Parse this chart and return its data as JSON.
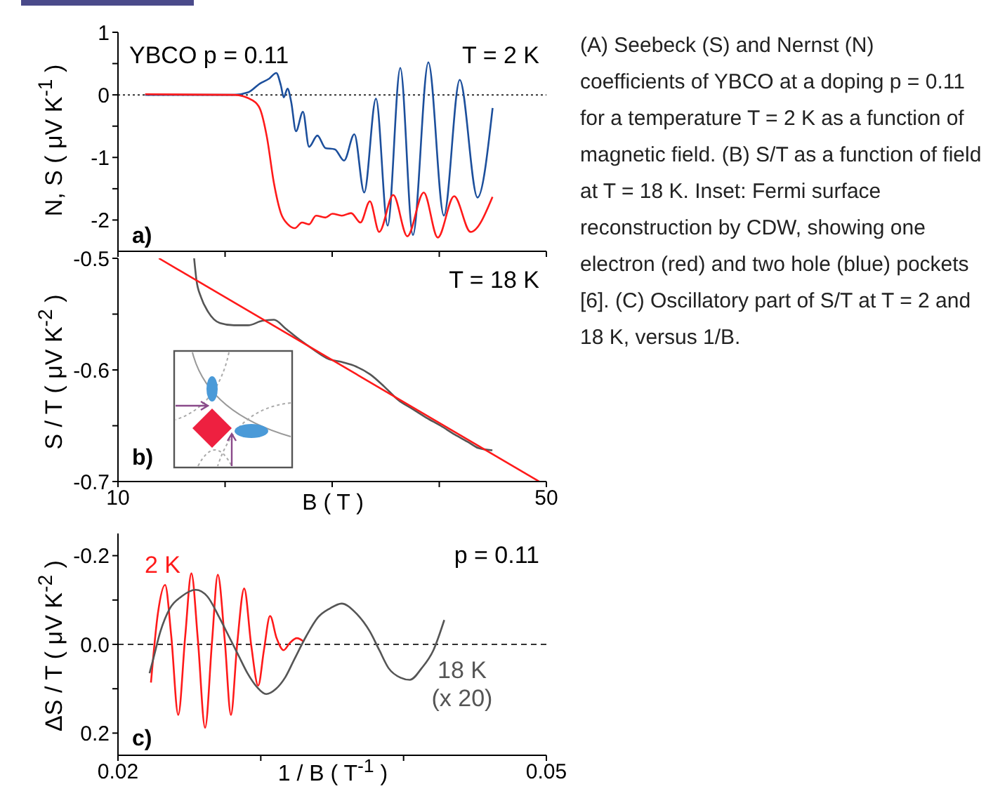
{
  "chart_data": [
    {
      "type": "line",
      "ylabel": "N, S ( μV K$^{-1}$ )",
      "xlim": [
        10,
        50
      ],
      "xticks": [
        10,
        20,
        30,
        40,
        50
      ],
      "ylim": [
        -2.5,
        1
      ],
      "yticks": [
        1,
        {
          "value": 0.5,
          "label": null
        },
        0,
        {
          "value": -0.5,
          "label": null
        },
        -1,
        {
          "value": -1.5,
          "label": null
        },
        -2
      ],
      "tick_labels": "y",
      "annotations": [
        "YBCO p = 0.11",
        "T = 2 K",
        "a)"
      ],
      "ref_lines": [
        {
          "axis": "y",
          "value": 0,
          "line_style": "dotted",
          "color": "#333333"
        }
      ],
      "series": [
        {
          "color": "#1c4f9c",
          "x": [
            12.53,
            20.85,
            22.16,
            23.25,
            24.12,
            24.78,
            25.21,
            25.48,
            25.83,
            26.17,
            26.62,
            27.27,
            27.84,
            28.62,
            29.37,
            30.24,
            31.11,
            32.07,
            32.99,
            34.09,
            35.18,
            36.36,
            37.54,
            38.98,
            40.43,
            41.91,
            43.57,
            44.98
          ],
          "values": [
            0,
            0,
            0.04,
            0.18,
            0.26,
            0.35,
            0.15,
            -0.04,
            0.1,
            -0.11,
            -0.58,
            -0.27,
            -0.83,
            -0.65,
            -0.85,
            -0.87,
            -1.05,
            -0.63,
            -1.56,
            -0.06,
            -2.09,
            0.43,
            -2.24,
            0.52,
            -1.93,
            0.24,
            -1.64,
            -0.21
          ]
        },
        {
          "color": "#ff1a1a",
          "x": [
            12.54,
            20.84,
            22.59,
            23.25,
            23.9,
            24.56,
            25.21,
            25.87,
            26.52,
            27.18,
            27.84,
            28.49,
            29.37,
            30.02,
            30.9,
            31.77,
            32.64,
            33.52,
            34.39,
            35.7,
            37.02,
            38.55,
            39.86,
            41.39,
            42.92,
            44.97
          ],
          "values": [
            0.01,
            0,
            -0.09,
            -0.22,
            -0.67,
            -1.41,
            -1.89,
            -2.07,
            -2.13,
            -2.04,
            -2.07,
            -1.93,
            -1.96,
            -1.9,
            -1.93,
            -1.89,
            -2.04,
            -1.7,
            -2.19,
            -1.6,
            -2.26,
            -1.56,
            -2.28,
            -1.62,
            -2.19,
            -1.63
          ]
        }
      ]
    },
    {
      "type": "line",
      "xlabel": "B ( T )",
      "ylabel": "S / T ( μV K$^{-2}$ )",
      "xlim": [
        10,
        50
      ],
      "xticks": [
        10,
        {
          "value": 20,
          "label": null
        },
        {
          "value": 30,
          "label": null
        },
        {
          "value": 40,
          "label": null
        },
        50
      ],
      "ylim": [
        -0.7,
        -0.5
      ],
      "yticks": [
        -0.5,
        {
          "value": -0.55,
          "label": null
        },
        -0.6,
        {
          "value": -0.65,
          "label": null
        },
        -0.7
      ],
      "annotations": [
        "T = 18 K",
        "b)"
      ],
      "series": [
        {
          "color": "#555555",
          "x": [
            17.11,
            17.32,
            17.76,
            18.42,
            19.52,
            20.83,
            22.15,
            23.46,
            24.56,
            25.66,
            26.97,
            28.29,
            29.61,
            30.92,
            32.24,
            33.55,
            34.87,
            36.18,
            37.5,
            38.82,
            40.13,
            41.45,
            42.76,
            43.64,
            44.96
          ],
          "values": [
            -0.5,
            -0.519,
            -0.535,
            -0.548,
            -0.558,
            -0.56,
            -0.56,
            -0.556,
            -0.555,
            -0.563,
            -0.573,
            -0.582,
            -0.59,
            -0.593,
            -0.597,
            -0.604,
            -0.615,
            -0.627,
            -0.635,
            -0.643,
            -0.65,
            -0.658,
            -0.665,
            -0.67,
            -0.672
          ]
        },
        {
          "type": "line",
          "color": "#ff1a1a",
          "x": [
            13.82,
            49.34
          ],
          "values": [
            -0.5,
            -0.7
          ]
        }
      ]
    },
    {
      "type": "line",
      "xlabel": "1 / B ( T$^{-1}$ )",
      "ylabel": "ΔS / T ( μV K$^{-2}$ )",
      "xlim": [
        0.02,
        0.05
      ],
      "xticks": [
        0.02,
        {
          "value": 0.03,
          "label": null
        },
        {
          "value": 0.04,
          "label": null
        },
        0.05
      ],
      "ylim": [
        0.25,
        -0.25
      ],
      "yticks": [
        -0.2,
        {
          "value": -0.1,
          "label": null
        },
        {
          "value": 0,
          "label": "0.0"
        },
        {
          "value": 0.1,
          "label": null
        },
        0.2
      ],
      "annotations": [
        "p = 0.11",
        "c)"
      ],
      "ref_lines": [
        {
          "axis": "y",
          "value": 0,
          "line_style": "dashed",
          "color": "#333333"
        }
      ],
      "series": [
        {
          "name": "2 K",
          "color": "#ff1a1a",
          "x": [
            0.02231,
            0.0228,
            0.0233,
            0.02373,
            0.02422,
            0.02471,
            0.02514,
            0.0256,
            0.0261,
            0.02659,
            0.02699,
            0.02748,
            0.02791,
            0.02834,
            0.02884,
            0.02933,
            0.02982,
            0.03022,
            0.03065,
            0.03111,
            0.0316,
            0.03203,
            0.03253,
            0.03302
          ],
          "values": [
            0.086,
            -0.071,
            -0.134,
            -0.019,
            0.159,
            -0.019,
            -0.16,
            -0.008,
            0.188,
            -0.008,
            -0.157,
            -0.008,
            0.159,
            0.002,
            -0.126,
            0.002,
            0.093,
            0.013,
            -0.064,
            -0.014,
            0.013,
            -0.003,
            -0.014,
            -0.006
          ]
        },
        {
          "name": "18 K (x 20)",
          "color": "#555555",
          "x": [
            0.02221,
            0.02247,
            0.02297,
            0.02363,
            0.02445,
            0.02544,
            0.02626,
            0.02709,
            0.02775,
            0.02841,
            0.02907,
            0.02973,
            0.03038,
            0.03104,
            0.0317,
            0.03236,
            0.03319,
            0.03401,
            0.03484,
            0.03566,
            0.03665,
            0.03764,
            0.0383,
            0.03896,
            0.03978,
            0.04044,
            0.04126,
            0.04209,
            0.04285
          ],
          "values": [
            0.065,
            0.033,
            -0.029,
            -0.081,
            -0.108,
            -0.123,
            -0.108,
            -0.061,
            -0.019,
            0.023,
            0.065,
            0.096,
            0.112,
            0.101,
            0.075,
            0.033,
            -0.019,
            -0.061,
            -0.081,
            -0.092,
            -0.071,
            -0.029,
            0.013,
            0.054,
            0.075,
            0.08,
            0.054,
            0.013,
            -0.055
          ]
        }
      ]
    },
    {
      "type": "other",
      "annotations": [
        "(A) Seebeck (S) and Nernst (N) coefficients of YBCO at a doping p = 0.11 for a temperature T = 2 K as a function of magnetic field. (B) S/T as a function of field at T = 18 K. Inset: Fermi surface reconstruction by CDW, showing one electron (red) and two hole (blue) pockets [6]. (C) Oscillatory part of S/T at T = 2 and 18 K, versus 1/B."
      ]
    }
  ]
}
